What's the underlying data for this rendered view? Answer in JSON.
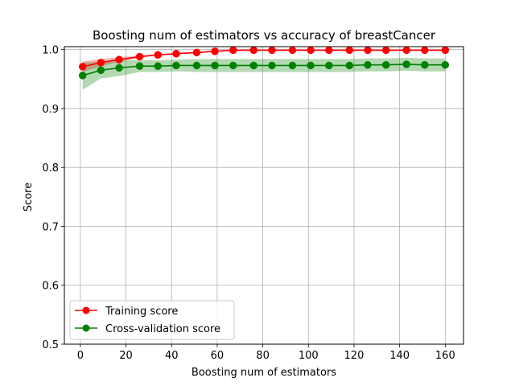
{
  "chart_data": {
    "type": "line",
    "title": "Boosting num of estimators vs accuracy of breastCancer",
    "xlabel": "Boosting num of estimators",
    "ylabel": "Score",
    "xlim": [
      -7,
      168
    ],
    "ylim": [
      0.5,
      1.005
    ],
    "xticks": [
      0,
      20,
      40,
      60,
      80,
      100,
      120,
      140,
      160
    ],
    "yticks": [
      0.5,
      0.6,
      0.7,
      0.8,
      0.9,
      1.0
    ],
    "xtick_labels": [
      "0",
      "20",
      "40",
      "60",
      "80",
      "100",
      "120",
      "140",
      "160"
    ],
    "ytick_labels": [
      "0.5",
      "0.6",
      "0.7",
      "0.8",
      "0.9",
      "1.0"
    ],
    "grid": true,
    "legend_position": "lower-left",
    "x": [
      1,
      9,
      17,
      26,
      34,
      42,
      51,
      59,
      67,
      76,
      84,
      93,
      101,
      109,
      118,
      126,
      134,
      143,
      151,
      160
    ],
    "series": [
      {
        "name": "Training score",
        "color": "#ff0000",
        "values": [
          0.971,
          0.978,
          0.983,
          0.988,
          0.991,
          0.993,
          0.995,
          0.997,
          0.999,
          0.999,
          0.999,
          0.999,
          0.999,
          0.999,
          0.999,
          0.999,
          0.999,
          0.999,
          0.999,
          0.999
        ],
        "band_lower": [
          0.962,
          0.972,
          0.979,
          0.986,
          0.99,
          0.992,
          0.994,
          0.996,
          0.998,
          0.999,
          0.999,
          0.999,
          0.999,
          0.999,
          0.999,
          0.999,
          0.999,
          0.999,
          0.999,
          0.999
        ],
        "band_upper": [
          0.98,
          0.984,
          0.987,
          0.99,
          0.992,
          0.994,
          0.996,
          0.998,
          1.0,
          1.0,
          1.0,
          1.0,
          1.0,
          1.0,
          1.0,
          1.0,
          1.0,
          1.0,
          1.0,
          1.0
        ]
      },
      {
        "name": "Cross-validation score",
        "color": "#008000",
        "values": [
          0.956,
          0.965,
          0.969,
          0.972,
          0.972,
          0.973,
          0.973,
          0.973,
          0.973,
          0.973,
          0.973,
          0.973,
          0.973,
          0.973,
          0.973,
          0.974,
          0.974,
          0.975,
          0.974,
          0.974
        ],
        "band_lower": [
          0.932,
          0.951,
          0.955,
          0.962,
          0.962,
          0.963,
          0.962,
          0.962,
          0.962,
          0.962,
          0.962,
          0.962,
          0.962,
          0.962,
          0.962,
          0.963,
          0.963,
          0.964,
          0.963,
          0.963
        ],
        "band_upper": [
          0.978,
          0.979,
          0.983,
          0.982,
          0.982,
          0.983,
          0.984,
          0.984,
          0.984,
          0.984,
          0.984,
          0.984,
          0.984,
          0.984,
          0.984,
          0.985,
          0.985,
          0.986,
          0.985,
          0.985
        ]
      }
    ]
  }
}
